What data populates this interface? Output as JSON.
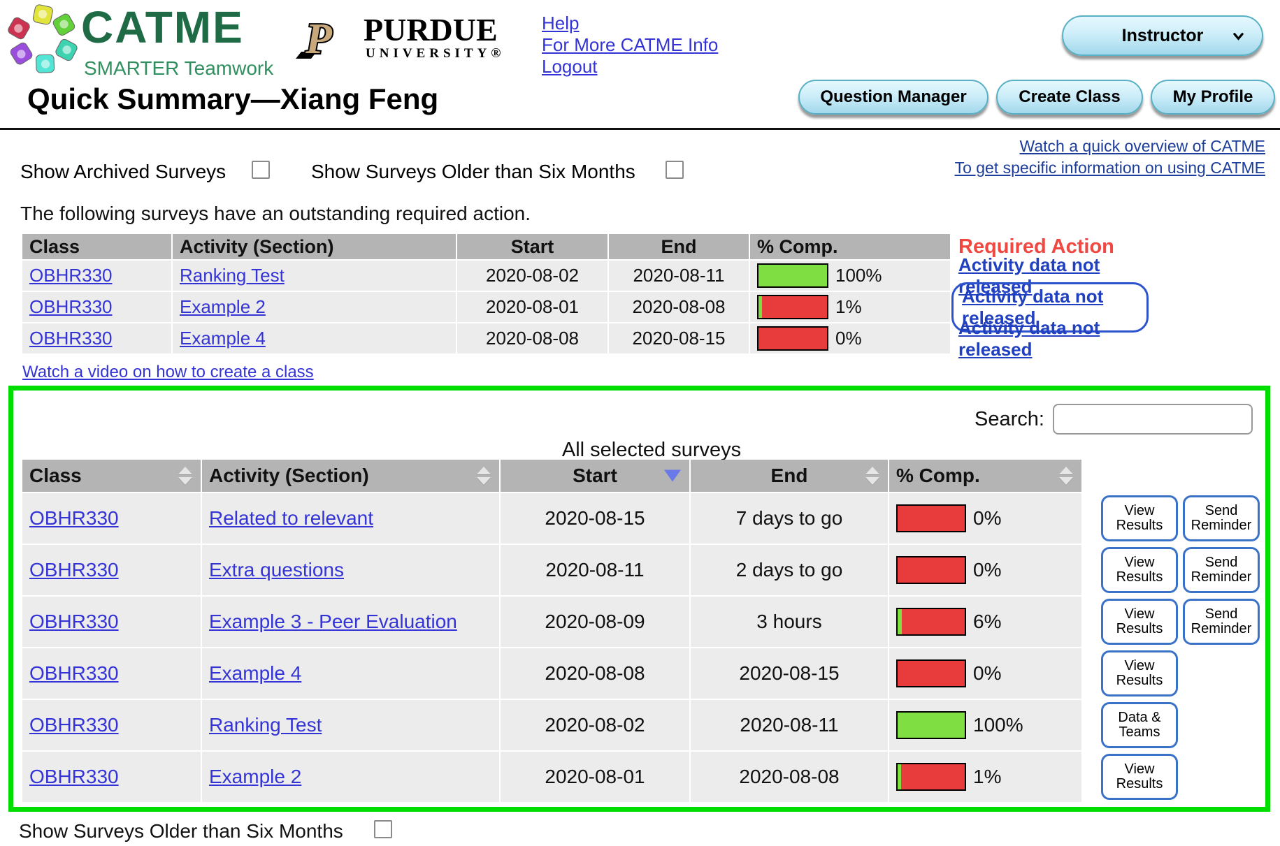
{
  "brand": {
    "catme_title": "CATME",
    "catme_subtitle": "SMARTER Teamwork",
    "purdue_name": "PURDUE",
    "purdue_sub": "UNIVERSITY®"
  },
  "top_links": {
    "help": "Help",
    "more_info": "For More CATME Info",
    "logout": "Logout"
  },
  "role_button": {
    "label": "Instructor"
  },
  "nav_buttons": {
    "question_manager": "Question Manager",
    "create_class": "Create Class",
    "my_profile": "My Profile"
  },
  "page_title": "Quick Summary—Xiang Feng",
  "overview_links": {
    "watch": "Watch a quick overview of CATME",
    "specific": "To get specific information on using CATME"
  },
  "filters": {
    "show_archived": "Show Archived Surveys",
    "show_older": "Show Surveys Older than Six Months"
  },
  "required_section": {
    "intro": "The following surveys have an outstanding required action.",
    "headers": {
      "class": "Class",
      "activity": "Activity (Section)",
      "start": "Start",
      "end": "End",
      "comp": "% Comp.",
      "action": "Required Action"
    },
    "rows": [
      {
        "class": "OBHR330",
        "activity": "Ranking Test",
        "start": "2020-08-02",
        "end": "2020-08-11",
        "pct": 100,
        "pct_label": "100%",
        "action": "Activity data not released"
      },
      {
        "class": "OBHR330",
        "activity": "Example 2",
        "start": "2020-08-01",
        "end": "2020-08-08",
        "pct": 1,
        "pct_label": "1%",
        "action": "Activity data not released"
      },
      {
        "class": "OBHR330",
        "activity": "Example 4",
        "start": "2020-08-08",
        "end": "2020-08-15",
        "pct": 0,
        "pct_label": "0%",
        "action": "Activity data not released"
      }
    ]
  },
  "create_class_link": "Watch a video on how to create a class",
  "selected_section": {
    "search_label": "Search:",
    "title": "All selected surveys",
    "headers": {
      "class": "Class",
      "activity": "Activity (Section)",
      "start": "Start",
      "end": "End",
      "comp": "% Comp."
    },
    "rows": [
      {
        "class": "OBHR330",
        "activity": "Related to relevant",
        "start": "2020-08-15",
        "end": "7 days to go",
        "pct": 0,
        "pct_label": "0%",
        "buttons": [
          "View Results",
          "Send Reminder"
        ]
      },
      {
        "class": "OBHR330",
        "activity": "Extra questions",
        "start": "2020-08-11",
        "end": "2 days to go",
        "pct": 0,
        "pct_label": "0%",
        "buttons": [
          "View Results",
          "Send Reminder"
        ]
      },
      {
        "class": "OBHR330",
        "activity": "Example 3 - Peer Evaluation",
        "start": "2020-08-09",
        "end": "3 hours",
        "pct": 6,
        "pct_label": "6%",
        "buttons": [
          "View Results",
          "Send Reminder"
        ]
      },
      {
        "class": "OBHR330",
        "activity": "Example 4",
        "start": "2020-08-08",
        "end": "2020-08-15",
        "pct": 0,
        "pct_label": "0%",
        "buttons": [
          "View Results"
        ]
      },
      {
        "class": "OBHR330",
        "activity": "Ranking Test",
        "start": "2020-08-02",
        "end": "2020-08-11",
        "pct": 100,
        "pct_label": "100%",
        "buttons": [
          "Data & Teams"
        ]
      },
      {
        "class": "OBHR330",
        "activity": "Example 2",
        "start": "2020-08-01",
        "end": "2020-08-08",
        "pct": 1,
        "pct_label": "1%",
        "buttons": [
          "View Results"
        ]
      }
    ]
  },
  "footer": {
    "show_older": "Show Surveys Older than Six Months"
  },
  "colors": {
    "bar_green": "#7fdf42",
    "bar_red": "#e83b3b",
    "section_border_green": "#00dd00",
    "required_red": "#f04741",
    "link_blue": "#3434d6",
    "navy_link": "#1c3d99",
    "action_link_blue": "#2040c0",
    "button_border_blue": "#3a72c8",
    "header_gray": "#b4b4b4"
  }
}
